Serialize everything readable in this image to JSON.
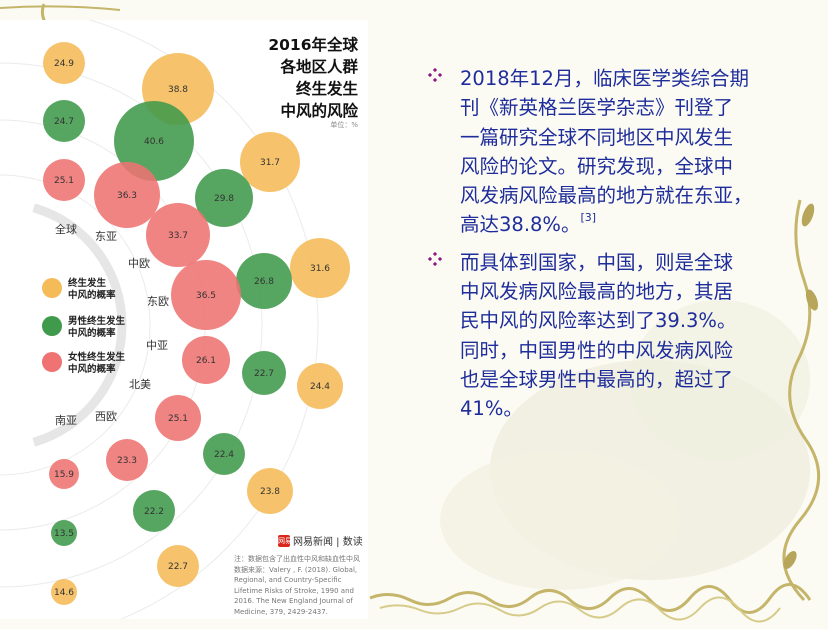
{
  "colors": {
    "yellow": "#f5bb58",
    "green": "#3f9a4b",
    "red": "#ee7372",
    "text_blue": "#1f2d9b",
    "bullet": "#8e1a86"
  },
  "infographic": {
    "title_lines": [
      "2016年全球",
      "各地区人群",
      "终生发生",
      "中风的风险"
    ],
    "unit": "单位：%",
    "regions": [
      "全球",
      "东亚",
      "中欧",
      "东欧",
      "中亚",
      "北美",
      "西欧",
      "南亚"
    ],
    "legend": [
      {
        "color": "yellow",
        "lines": [
          "终生发生",
          "中风的概率"
        ]
      },
      {
        "color": "green",
        "lines": [
          "男性终生发生",
          "中风的概率"
        ]
      },
      {
        "color": "red",
        "lines": [
          "女性终生发生",
          "中风的概率"
        ]
      }
    ],
    "bubbles": [
      {
        "label": "24.9",
        "color": "yellow"
      },
      {
        "label": "24.7",
        "color": "green"
      },
      {
        "label": "25.1",
        "color": "red"
      },
      {
        "label": "38.8",
        "color": "yellow"
      },
      {
        "label": "40.6",
        "color": "green"
      },
      {
        "label": "36.3",
        "color": "red"
      },
      {
        "label": "31.7",
        "color": "yellow"
      },
      {
        "label": "29.8",
        "color": "green"
      },
      {
        "label": "33.7",
        "color": "red"
      },
      {
        "label": "31.6",
        "color": "yellow"
      },
      {
        "label": "26.8",
        "color": "green"
      },
      {
        "label": "36.5",
        "color": "red"
      },
      {
        "label": "24.4",
        "color": "yellow"
      },
      {
        "label": "22.7",
        "color": "green"
      },
      {
        "label": "26.1",
        "color": "red"
      },
      {
        "label": "23.8",
        "color": "yellow"
      },
      {
        "label": "22.4",
        "color": "green"
      },
      {
        "label": "25.1",
        "color": "red"
      },
      {
        "label": "22.7",
        "color": "yellow"
      },
      {
        "label": "22.2",
        "color": "green"
      },
      {
        "label": "23.3",
        "color": "red"
      },
      {
        "label": "14.6",
        "color": "yellow"
      },
      {
        "label": "13.5",
        "color": "green"
      },
      {
        "label": "15.9",
        "color": "red"
      }
    ],
    "logo_badge": "网易",
    "logo_text": "网易新闻 | 数读",
    "source_lines": [
      "注：数据包含了出血性中风和缺血性中风",
      "数据来源：Valery , F. (2018). Global,",
      "Regional, and Country-Specific",
      "Lifetime Risks of Stroke, 1990 and",
      "2016. The New England Journal of",
      "Medicine, 379, 2429-2437."
    ]
  },
  "bullets": [
    {
      "lines": [
        "2018年12月，临床医学类综合期",
        "刊《新英格兰医学杂志》刊登了",
        "一篇研究全球不同地区中风发生",
        "风险的论文。研究发现，全球中",
        "风发病风险最高的地方就在东亚，"
      ],
      "last_line": "高达38.8%。",
      "ref": "[3]"
    },
    {
      "lines": [
        "而具体到国家，中国，则是全球",
        "中风发病风险最高的地方，其居",
        "民中风的风险率达到了39.3%。",
        "同时，中国男性的中风发病风险",
        "也是全球男性中最高的，超过了",
        "41%。"
      ]
    }
  ]
}
